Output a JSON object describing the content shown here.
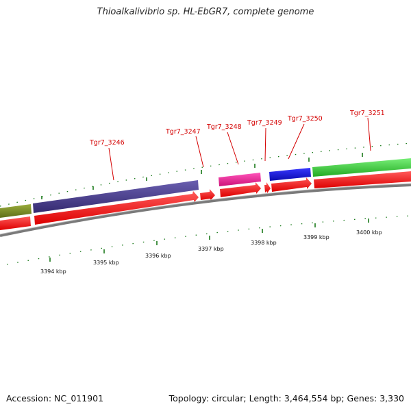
{
  "title": "Thioalkalivibrio sp. HL-EbGR7, complete genome",
  "footer": {
    "accession": "Accession: NC_011901",
    "summary": "Topology: circular; Length: 3,464,554 bp; Genes: 3,330"
  },
  "colors": {
    "gene_label": "#d40000",
    "cds_arrow": "#ff0000",
    "backbone": "#888888",
    "tick": "#1a7a1a",
    "olive_feature": "#7a8c28",
    "purple_feature": "#4a3f8f",
    "pink_feature": "#ee2299",
    "blue_feature": "#1010e0",
    "green_feature": "#33cc33"
  },
  "gene_labels": [
    "Tgr7_3246",
    "Tgr7_3247",
    "Tgr7_3248",
    "Tgr7_3249",
    "Tgr7_3250",
    "Tgr7_3251"
  ],
  "kbp_labels": [
    "3394 kbp",
    "3395 kbp",
    "3396 kbp",
    "3397 kbp",
    "3398 kbp",
    "3399 kbp",
    "3400 kbp"
  ]
}
